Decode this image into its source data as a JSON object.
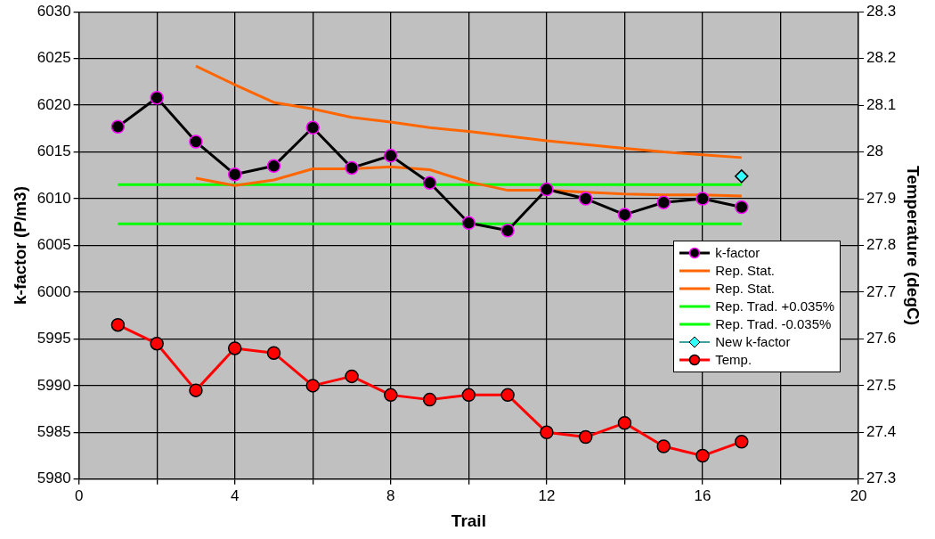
{
  "chart_data": {
    "type": "line",
    "xlabel": "Trail",
    "ylabel": "k-factor (P/m3)",
    "y2label": "Temperature (degC)",
    "xlim": [
      0,
      20
    ],
    "xticks": [
      0,
      {
        "value": 2,
        "label": null
      },
      4,
      {
        "value": 6,
        "label": null
      },
      8,
      {
        "value": 10,
        "label": null
      },
      12,
      {
        "value": 14,
        "label": null
      },
      16,
      {
        "value": 18,
        "label": null
      },
      20
    ],
    "ylim": [
      5980,
      6030
    ],
    "yticks": [
      5980,
      5985,
      5990,
      5995,
      6000,
      6005,
      6010,
      6015,
      6020,
      6025,
      6030
    ],
    "y2lim": [
      27.3,
      28.3
    ],
    "y2ticks": [
      27.3,
      27.4,
      27.5,
      27.6,
      27.7,
      27.8,
      27.9,
      28,
      28.1,
      28.2,
      28.3
    ],
    "grid": true,
    "legend": "right",
    "series": [
      {
        "name": "k-factor",
        "marker": "circle",
        "color": "#000000",
        "x": [
          1,
          2,
          3,
          4,
          5,
          6,
          7,
          8,
          9,
          10,
          11,
          12,
          13,
          14,
          15,
          16,
          17
        ],
        "values": [
          6017.7,
          6020.8,
          6016.1,
          6012.6,
          6013.5,
          6017.6,
          6013.3,
          6014.6,
          6011.7,
          6007.4,
          6006.6,
          6011.0,
          6010.0,
          6008.3,
          6009.6,
          6010.0,
          6009.1
        ]
      },
      {
        "name": "Rep. Stat.",
        "type": "line",
        "marker": "none",
        "color": "#ff6600",
        "x": [
          3,
          4,
          5,
          6,
          7,
          8,
          9,
          10,
          11,
          12,
          13,
          14,
          15,
          16,
          17
        ],
        "values": [
          6024.2,
          6022.2,
          6020.3,
          6019.6,
          6018.7,
          6018.2,
          6017.6,
          6017.2,
          6016.7,
          6016.2,
          6015.8,
          6015.4,
          6015.0,
          6014.7,
          6014.4
        ]
      },
      {
        "name": "Rep. Stat.",
        "type": "line",
        "marker": "none",
        "color": "#ff6600",
        "x": [
          3,
          4,
          5,
          6,
          7,
          8,
          9,
          10,
          11,
          12,
          13,
          14,
          15,
          16,
          17
        ],
        "values": [
          6012.2,
          6011.4,
          6012.0,
          6013.2,
          6013.2,
          6013.4,
          6013.1,
          6011.8,
          6010.9,
          6010.9,
          6010.7,
          6010.5,
          6010.4,
          6010.4,
          6010.3
        ]
      },
      {
        "name": "Rep. Trad. +0.035%",
        "type": "line",
        "marker": "none",
        "color": "#00ff00",
        "x": [
          1,
          17
        ],
        "values": [
          6011.5,
          6011.5
        ]
      },
      {
        "name": "Rep. Trad. -0.035%",
        "type": "line",
        "marker": "none",
        "color": "#00ff00",
        "x": [
          1,
          17
        ],
        "values": [
          6007.3,
          6007.3
        ]
      },
      {
        "name": "New k-factor",
        "type": "scatter",
        "marker": "diamond",
        "color": "#33ffff",
        "x": [
          17
        ],
        "values": [
          6012.4
        ]
      },
      {
        "name": "Temp.",
        "marker": "circle",
        "color": "#ff0000",
        "axis": "y2",
        "x": [
          1,
          2,
          3,
          4,
          5,
          6,
          7,
          8,
          9,
          10,
          11,
          12,
          13,
          14,
          15,
          16,
          17
        ],
        "values": [
          27.63,
          27.59,
          27.49,
          27.58,
          27.57,
          27.5,
          27.52,
          27.48,
          27.47,
          27.48,
          27.48,
          27.4,
          27.39,
          27.42,
          27.37,
          27.35,
          27.38
        ]
      }
    ]
  }
}
